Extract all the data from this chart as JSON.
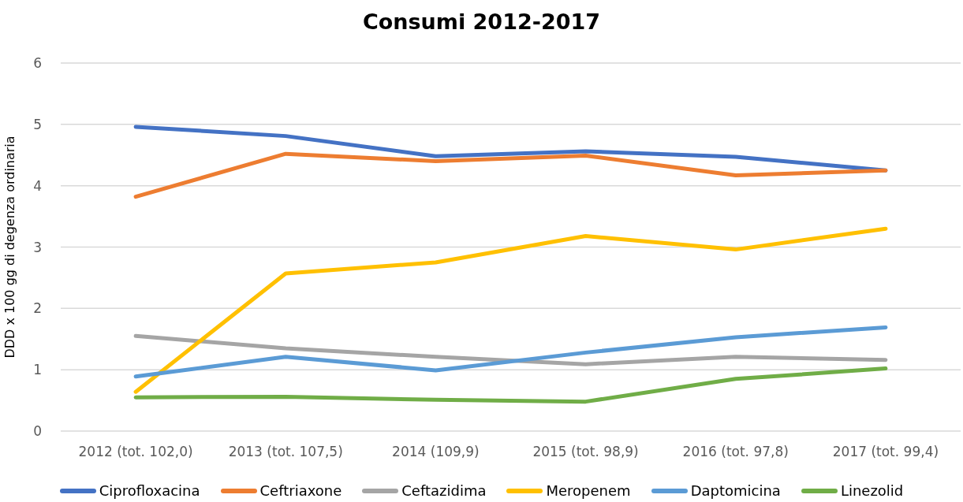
{
  "chart_data": {
    "type": "line",
    "title": "Consumi 2012-2017",
    "ylabel": "DDD x 100 gg di degenza ordinaria",
    "categories": [
      "2012 (tot. 102,0)",
      "2013 (tot. 107,5)",
      "2014 (109,9)",
      "2015 (tot. 98,9)",
      "2016 (tot. 97,8)",
      "2017 (tot. 99,4)"
    ],
    "series": [
      {
        "name": "Ciprofloxacina",
        "color": "#4472c4",
        "values": [
          4.96,
          4.81,
          4.48,
          4.56,
          4.47,
          4.25
        ]
      },
      {
        "name": "Ceftriaxone",
        "color": "#ed7d31",
        "values": [
          3.82,
          4.52,
          4.4,
          4.49,
          4.17,
          4.25
        ]
      },
      {
        "name": "Ceftazidima",
        "color": "#a5a5a5",
        "values": [
          1.55,
          1.35,
          1.21,
          1.09,
          1.21,
          1.16
        ]
      },
      {
        "name": "Meropenem",
        "color": "#ffc000",
        "values": [
          0.64,
          2.57,
          2.75,
          3.18,
          2.96,
          3.3
        ]
      },
      {
        "name": "Daptomicina",
        "color": "#5b9bd5",
        "values": [
          0.89,
          1.21,
          0.99,
          1.28,
          1.53,
          1.69
        ]
      },
      {
        "name": "Linezolid",
        "color": "#70ad47",
        "values": [
          0.55,
          0.56,
          0.51,
          0.48,
          0.85,
          1.02
        ]
      }
    ],
    "ylim": [
      0,
      6
    ],
    "yticks": [
      0,
      1,
      2,
      3,
      4,
      5,
      6
    ],
    "grid": "y",
    "legend": "bottom",
    "marker": "none",
    "line_style": "solid"
  }
}
